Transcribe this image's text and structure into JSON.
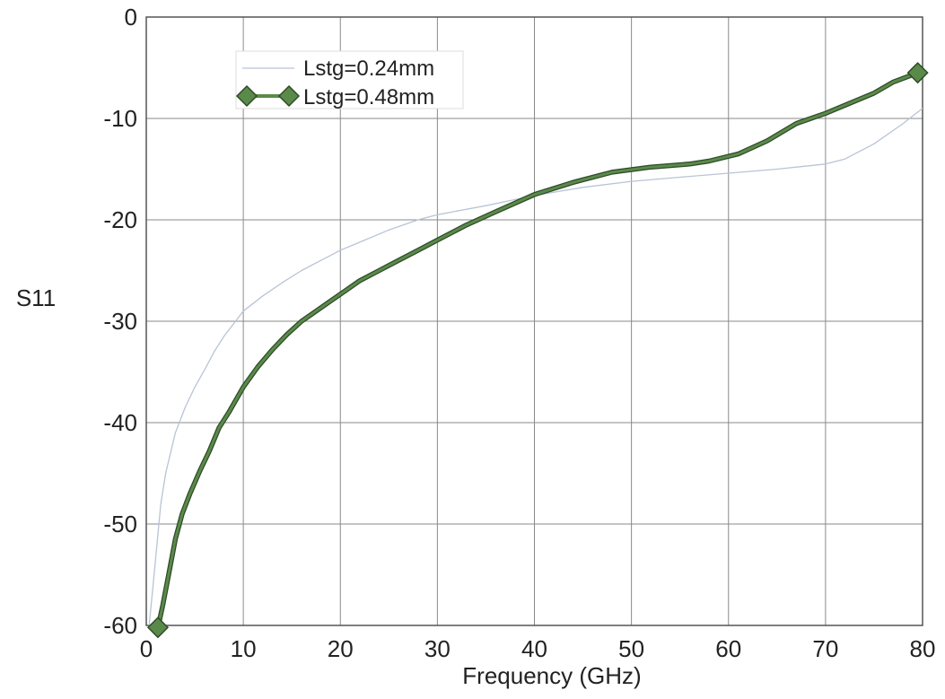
{
  "chart_data": {
    "type": "line",
    "xlabel": "Frequency (GHz)",
    "ylabel": "S11",
    "xlim": [
      0,
      80
    ],
    "ylim": [
      -60,
      0
    ],
    "x_ticks": [
      "0",
      "10",
      "20",
      "30",
      "40",
      "50",
      "60",
      "70",
      "80"
    ],
    "y_ticks": [
      "0",
      "-10",
      "-20",
      "-30",
      "-40",
      "-50",
      "-60"
    ],
    "grid": true,
    "legend_position": "top-left",
    "series": [
      {
        "name": "Lstg=0.24mm",
        "color": "#b8c4d6",
        "style": "thin",
        "marker": "none",
        "x": [
          0.3,
          0.8,
          1.5,
          2,
          3,
          4,
          5,
          6,
          7,
          8,
          10,
          12,
          14,
          16,
          18,
          20,
          22,
          25,
          28,
          30,
          35,
          40,
          45,
          50,
          55,
          60,
          65,
          70,
          72,
          75,
          78,
          80
        ],
        "y": [
          -60,
          -55,
          -48,
          -45,
          -41,
          -38.5,
          -36.5,
          -34.8,
          -33,
          -31.5,
          -29,
          -27.5,
          -26.2,
          -25,
          -24,
          -23,
          -22.2,
          -21,
          -20,
          -19.5,
          -18.6,
          -17.6,
          -16.8,
          -16.2,
          -15.8,
          -15.4,
          -15,
          -14.5,
          -14,
          -12.5,
          -10.5,
          -9
        ]
      },
      {
        "name": "Lstg=0.48mm",
        "color": "#5a8a4a",
        "style": "thick",
        "marker": "diamond-ends",
        "x": [
          1.2,
          1.7,
          2.3,
          3,
          3.7,
          4.5,
          5.5,
          6.5,
          7.5,
          8.5,
          10,
          11.5,
          13,
          14.5,
          16,
          17.5,
          19,
          20.5,
          22,
          24,
          26,
          28,
          30,
          33,
          36,
          40,
          44,
          48,
          52,
          56,
          58,
          61,
          64,
          67,
          70,
          73,
          75,
          77,
          79.5
        ],
        "y": [
          -60.2,
          -58,
          -55,
          -51.5,
          -49,
          -47,
          -44.8,
          -42.8,
          -40.5,
          -39,
          -36.5,
          -34.5,
          -32.8,
          -31.3,
          -30,
          -29,
          -28,
          -27,
          -26,
          -25,
          -24,
          -23,
          -22,
          -20.5,
          -19.2,
          -17.5,
          -16.3,
          -15.3,
          -14.8,
          -14.5,
          -14.2,
          -13.5,
          -12.2,
          -10.5,
          -9.5,
          -8.3,
          -7.5,
          -6.4,
          -5.5
        ]
      }
    ]
  }
}
